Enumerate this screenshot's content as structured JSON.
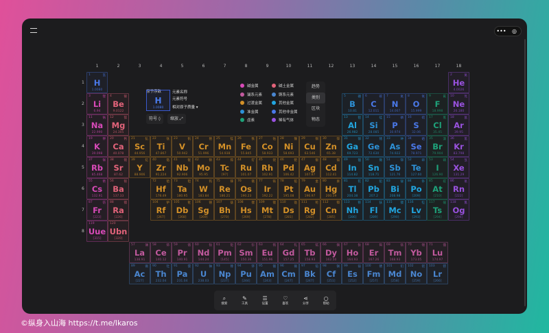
{
  "header": {
    "menu_icon": "hamburger-icon",
    "more_label": "•••",
    "target_icon": "record-icon"
  },
  "groups": [
    "1",
    "2",
    "3",
    "4",
    "5",
    "6",
    "7",
    "8",
    "9",
    "10",
    "11",
    "12",
    "13",
    "14",
    "15",
    "16",
    "17",
    "18"
  ],
  "periods": [
    "1",
    "2",
    "3",
    "4",
    "5",
    "6",
    "7",
    "8"
  ],
  "key": {
    "title": "原子序数",
    "symbol": "H",
    "mass": "1.0080",
    "name_label": "元素名称",
    "symbol_label": "元素符号",
    "mass_label": "相对原子质量 ▾",
    "symbol_button": "符号 ◊",
    "zoom_button": "缩放 ⤢"
  },
  "categories": {
    "alkali": {
      "label": "碱金属",
      "color": "#d84ab8"
    },
    "alkaline": {
      "label": "碱土金属",
      "color": "#e2637a"
    },
    "lanthanide": {
      "label": "镧系元素",
      "color": "#c25a9e"
    },
    "actinide": {
      "label": "锕系元素",
      "color": "#4a86d0"
    },
    "transition": {
      "label": "过渡金属",
      "color": "#d39028"
    },
    "post": {
      "label": "其他金属",
      "color": "#22a6e0"
    },
    "metalloid": {
      "label": "准金属",
      "color": "#2e92d8"
    },
    "nonmetal": {
      "label": "其他非金属",
      "color": "#4a78e8"
    },
    "halogen": {
      "label": "卤素",
      "color": "#1ea27a"
    },
    "noble": {
      "label": "稀有气体",
      "color": "#9a52e0"
    }
  },
  "legend_order": [
    "alkali",
    "alkaline",
    "lanthanide",
    "actinide",
    "transition",
    "post",
    "metalloid",
    "nonmetal",
    "halogen",
    "noble"
  ],
  "modes": [
    {
      "label": "趋势",
      "active": false
    },
    {
      "label": "类别",
      "active": true
    },
    {
      "label": "区块",
      "active": false
    },
    {
      "label": "物态",
      "active": false
    }
  ],
  "toolbar": [
    {
      "icon": "search-icon",
      "glyph": "⌕",
      "label": "搜索"
    },
    {
      "icon": "tools-icon",
      "glyph": "✎",
      "label": "工具"
    },
    {
      "icon": "settings-icon",
      "glyph": "☰",
      "label": "设置"
    },
    {
      "icon": "heart-icon",
      "glyph": "♡",
      "label": "喜欢"
    },
    {
      "icon": "share-icon",
      "glyph": "⋖",
      "label": "分享"
    },
    {
      "icon": "help-icon",
      "glyph": "○",
      "label": "帮助"
    }
  ],
  "watermark": "©纵身入山海 https://t.me/lkaros",
  "elements": [
    [
      1,
      "H",
      "氢",
      "1.0080",
      "nonmetal",
      1,
      1
    ],
    [
      2,
      "He",
      "氦",
      "4.0026",
      "noble",
      1,
      18
    ],
    [
      3,
      "Li",
      "锂",
      "6.94",
      "alkali",
      2,
      1
    ],
    [
      4,
      "Be",
      "铍",
      "9.0122",
      "alkaline",
      2,
      2
    ],
    [
      5,
      "B",
      "硼",
      "10.81",
      "metalloid",
      2,
      13
    ],
    [
      6,
      "C",
      "碳",
      "12.011",
      "nonmetal",
      2,
      14
    ],
    [
      7,
      "N",
      "氮",
      "14.007",
      "nonmetal",
      2,
      15
    ],
    [
      8,
      "O",
      "氧",
      "15.999",
      "nonmetal",
      2,
      16
    ],
    [
      9,
      "F",
      "氟",
      "18.998",
      "halogen",
      2,
      17
    ],
    [
      10,
      "Ne",
      "氖",
      "20.180",
      "noble",
      2,
      18
    ],
    [
      11,
      "Na",
      "钠",
      "22.990",
      "alkali",
      3,
      1
    ],
    [
      12,
      "Mg",
      "镁",
      "24.305",
      "alkaline",
      3,
      2
    ],
    [
      13,
      "Al",
      "铝",
      "26.982",
      "post",
      3,
      13
    ],
    [
      14,
      "Si",
      "硅",
      "28.085",
      "metalloid",
      3,
      14
    ],
    [
      15,
      "P",
      "磷",
      "30.974",
      "nonmetal",
      3,
      15
    ],
    [
      16,
      "S",
      "硫",
      "32.06",
      "nonmetal",
      3,
      16
    ],
    [
      17,
      "Cl",
      "氯",
      "35.45",
      "halogen",
      3,
      17
    ],
    [
      18,
      "Ar",
      "氩",
      "39.95",
      "noble",
      3,
      18
    ],
    [
      19,
      "K",
      "钾",
      "39.098",
      "alkali",
      4,
      1
    ],
    [
      20,
      "Ca",
      "钙",
      "40.078",
      "alkaline",
      4,
      2
    ],
    [
      21,
      "Sc",
      "钪",
      "44.956",
      "transition",
      4,
      3
    ],
    [
      22,
      "Ti",
      "钛",
      "47.867",
      "transition",
      4,
      4
    ],
    [
      23,
      "V",
      "钒",
      "50.942",
      "transition",
      4,
      5
    ],
    [
      24,
      "Cr",
      "铬",
      "51.996",
      "transition",
      4,
      6
    ],
    [
      25,
      "Mn",
      "锰",
      "54.938",
      "transition",
      4,
      7
    ],
    [
      26,
      "Fe",
      "铁",
      "55.845",
      "transition",
      4,
      8
    ],
    [
      27,
      "Co",
      "钴",
      "58.933",
      "transition",
      4,
      9
    ],
    [
      28,
      "Ni",
      "镍",
      "58.693",
      "transition",
      4,
      10
    ],
    [
      29,
      "Cu",
      "铜",
      "63.546",
      "transition",
      4,
      11
    ],
    [
      30,
      "Zn",
      "锌",
      "65.38",
      "transition",
      4,
      12
    ],
    [
      31,
      "Ga",
      "镓",
      "69.723",
      "post",
      4,
      13
    ],
    [
      32,
      "Ge",
      "锗",
      "72.630",
      "metalloid",
      4,
      14
    ],
    [
      33,
      "As",
      "砷",
      "74.922",
      "metalloid",
      4,
      15
    ],
    [
      34,
      "Se",
      "硒",
      "78.971",
      "nonmetal",
      4,
      16
    ],
    [
      35,
      "Br",
      "溴",
      "79.904",
      "halogen",
      4,
      17
    ],
    [
      36,
      "Kr",
      "氪",
      "83.798",
      "noble",
      4,
      18
    ],
    [
      37,
      "Rb",
      "铷",
      "85.468",
      "alkali",
      5,
      1
    ],
    [
      38,
      "Sr",
      "锶",
      "87.62",
      "alkaline",
      5,
      2
    ],
    [
      39,
      "Y",
      "钇",
      "88.906",
      "transition",
      5,
      3
    ],
    [
      40,
      "Zr",
      "锆",
      "91.224",
      "transition",
      5,
      4
    ],
    [
      41,
      "Nb",
      "铌",
      "92.906",
      "transition",
      5,
      5
    ],
    [
      42,
      "Mo",
      "钼",
      "95.95",
      "transition",
      5,
      6
    ],
    [
      43,
      "Tc",
      "锝",
      "[97]",
      "transition",
      5,
      7
    ],
    [
      44,
      "Ru",
      "钌",
      "101.07",
      "transition",
      5,
      8
    ],
    [
      45,
      "Rh",
      "铑",
      "102.91",
      "transition",
      5,
      9
    ],
    [
      46,
      "Pd",
      "钯",
      "106.42",
      "transition",
      5,
      10
    ],
    [
      47,
      "Ag",
      "银",
      "107.87",
      "transition",
      5,
      11
    ],
    [
      48,
      "Cd",
      "镉",
      "112.41",
      "transition",
      5,
      12
    ],
    [
      49,
      "In",
      "铟",
      "114.82",
      "post",
      5,
      13
    ],
    [
      50,
      "Sn",
      "锡",
      "118.71",
      "post",
      5,
      14
    ],
    [
      51,
      "Sb",
      "锑",
      "121.76",
      "metalloid",
      5,
      15
    ],
    [
      52,
      "Te",
      "碲",
      "127.60",
      "metalloid",
      5,
      16
    ],
    [
      53,
      "I",
      "碘",
      "126.90",
      "halogen",
      5,
      17
    ],
    [
      54,
      "Xe",
      "氙",
      "131.29",
      "noble",
      5,
      18
    ],
    [
      55,
      "Cs",
      "铯",
      "132.91",
      "alkali",
      6,
      1
    ],
    [
      56,
      "Ba",
      "钡",
      "137.33",
      "alkaline",
      6,
      2
    ],
    [
      72,
      "Hf",
      "铪",
      "178.49",
      "transition",
      6,
      4
    ],
    [
      73,
      "Ta",
      "钽",
      "180.95",
      "transition",
      6,
      5
    ],
    [
      74,
      "W",
      "钨",
      "183.84",
      "transition",
      6,
      6
    ],
    [
      75,
      "Re",
      "铼",
      "186.21",
      "transition",
      6,
      7
    ],
    [
      76,
      "Os",
      "锇",
      "190.23",
      "transition",
      6,
      8
    ],
    [
      77,
      "Ir",
      "铱",
      "192.22",
      "transition",
      6,
      9
    ],
    [
      78,
      "Pt",
      "铂",
      "195.08",
      "transition",
      6,
      10
    ],
    [
      79,
      "Au",
      "金",
      "196.97",
      "transition",
      6,
      11
    ],
    [
      80,
      "Hg",
      "汞",
      "200.59",
      "transition",
      6,
      12
    ],
    [
      81,
      "Tl",
      "铊",
      "204.38",
      "post",
      6,
      13
    ],
    [
      82,
      "Pb",
      "铅",
      "207.2",
      "post",
      6,
      14
    ],
    [
      83,
      "Bi",
      "铋",
      "208.98",
      "post",
      6,
      15
    ],
    [
      84,
      "Po",
      "钋",
      "[209]",
      "post",
      6,
      16
    ],
    [
      85,
      "At",
      "砹",
      "[210]",
      "halogen",
      6,
      17
    ],
    [
      86,
      "Rn",
      "氡",
      "[222]",
      "noble",
      6,
      18
    ],
    [
      87,
      "Fr",
      "钫",
      "[223]",
      "alkali",
      7,
      1
    ],
    [
      88,
      "Ra",
      "镭",
      "[226]",
      "alkaline",
      7,
      2
    ],
    [
      104,
      "Rf",
      "𬬻",
      "[267]",
      "transition",
      7,
      4
    ],
    [
      105,
      "Db",
      "𬭊",
      "[268]",
      "transition",
      7,
      5
    ],
    [
      106,
      "Sg",
      "𬭳",
      "[269]",
      "transition",
      7,
      6
    ],
    [
      107,
      "Bh",
      "𬭛",
      "[270]",
      "transition",
      7,
      7
    ],
    [
      108,
      "Hs",
      "𬭶",
      "[269]",
      "transition",
      7,
      8
    ],
    [
      109,
      "Mt",
      "鿏",
      "[278]",
      "transition",
      7,
      9
    ],
    [
      110,
      "Ds",
      "𫟼",
      "[281]",
      "transition",
      7,
      10
    ],
    [
      111,
      "Rg",
      "𬬭",
      "[282]",
      "transition",
      7,
      11
    ],
    [
      112,
      "Cn",
      "鿔",
      "[285]",
      "transition",
      7,
      12
    ],
    [
      113,
      "Nh",
      "鿭",
      "[286]",
      "post",
      7,
      13
    ],
    [
      114,
      "Fl",
      "𫓧",
      "[289]",
      "post",
      7,
      14
    ],
    [
      115,
      "Mc",
      "镆",
      "[290]",
      "post",
      7,
      15
    ],
    [
      116,
      "Lv",
      "𫟷",
      "[293]",
      "post",
      7,
      16
    ],
    [
      117,
      "Ts",
      "鿬",
      "[294]",
      "halogen",
      7,
      17
    ],
    [
      118,
      "Og",
      "鿫",
      "[294]",
      "noble",
      7,
      18
    ],
    [
      119,
      "Uue",
      "",
      "[315]",
      "alkali",
      8,
      1
    ],
    [
      120,
      "Ubn",
      "",
      "[320]",
      "alkaline",
      8,
      2
    ],
    [
      57,
      "La",
      "镧",
      "138.91",
      "lanthanide",
      9,
      3
    ],
    [
      58,
      "Ce",
      "铈",
      "140.12",
      "lanthanide",
      9,
      4
    ],
    [
      59,
      "Pr",
      "镨",
      "140.91",
      "lanthanide",
      9,
      5
    ],
    [
      60,
      "Nd",
      "钕",
      "144.24",
      "lanthanide",
      9,
      6
    ],
    [
      61,
      "Pm",
      "钷",
      "[145]",
      "lanthanide",
      9,
      7
    ],
    [
      62,
      "Sm",
      "钐",
      "150.36",
      "lanthanide",
      9,
      8
    ],
    [
      63,
      "Eu",
      "铕",
      "151.96",
      "lanthanide",
      9,
      9
    ],
    [
      64,
      "Gd",
      "钆",
      "157.25",
      "lanthanide",
      9,
      10
    ],
    [
      65,
      "Tb",
      "铽",
      "158.93",
      "lanthanide",
      9,
      11
    ],
    [
      66,
      "Dy",
      "镝",
      "162.50",
      "lanthanide",
      9,
      12
    ],
    [
      67,
      "Ho",
      "钬",
      "164.93",
      "lanthanide",
      9,
      13
    ],
    [
      68,
      "Er",
      "铒",
      "167.26",
      "lanthanide",
      9,
      14
    ],
    [
      69,
      "Tm",
      "铥",
      "168.93",
      "lanthanide",
      9,
      15
    ],
    [
      70,
      "Yb",
      "镱",
      "173.05",
      "lanthanide",
      9,
      16
    ],
    [
      71,
      "Lu",
      "镥",
      "174.97",
      "lanthanide",
      9,
      17
    ],
    [
      89,
      "Ac",
      "锕",
      "[227]",
      "actinide",
      10,
      3
    ],
    [
      90,
      "Th",
      "钍",
      "232.04",
      "actinide",
      10,
      4
    ],
    [
      91,
      "Pa",
      "镤",
      "231.04",
      "actinide",
      10,
      5
    ],
    [
      92,
      "U",
      "铀",
      "238.03",
      "actinide",
      10,
      6
    ],
    [
      93,
      "Np",
      "镎",
      "[237]",
      "actinide",
      10,
      7
    ],
    [
      94,
      "Pu",
      "钚",
      "[244]",
      "actinide",
      10,
      8
    ],
    [
      95,
      "Am",
      "镅",
      "[243]",
      "actinide",
      10,
      9
    ],
    [
      96,
      "Cm",
      "锔",
      "[247]",
      "actinide",
      10,
      10
    ],
    [
      97,
      "Bk",
      "锫",
      "[247]",
      "actinide",
      10,
      11
    ],
    [
      98,
      "Cf",
      "锎",
      "[251]",
      "actinide",
      10,
      12
    ],
    [
      99,
      "Es",
      "锿",
      "[252]",
      "actinide",
      10,
      13
    ],
    [
      100,
      "Fm",
      "镄",
      "[257]",
      "actinide",
      10,
      14
    ],
    [
      101,
      "Md",
      "钔",
      "[258]",
      "actinide",
      10,
      15
    ],
    [
      102,
      "No",
      "锘",
      "[259]",
      "actinide",
      10,
      16
    ],
    [
      103,
      "Lr",
      "铹",
      "[266]",
      "actinide",
      10,
      17
    ]
  ]
}
